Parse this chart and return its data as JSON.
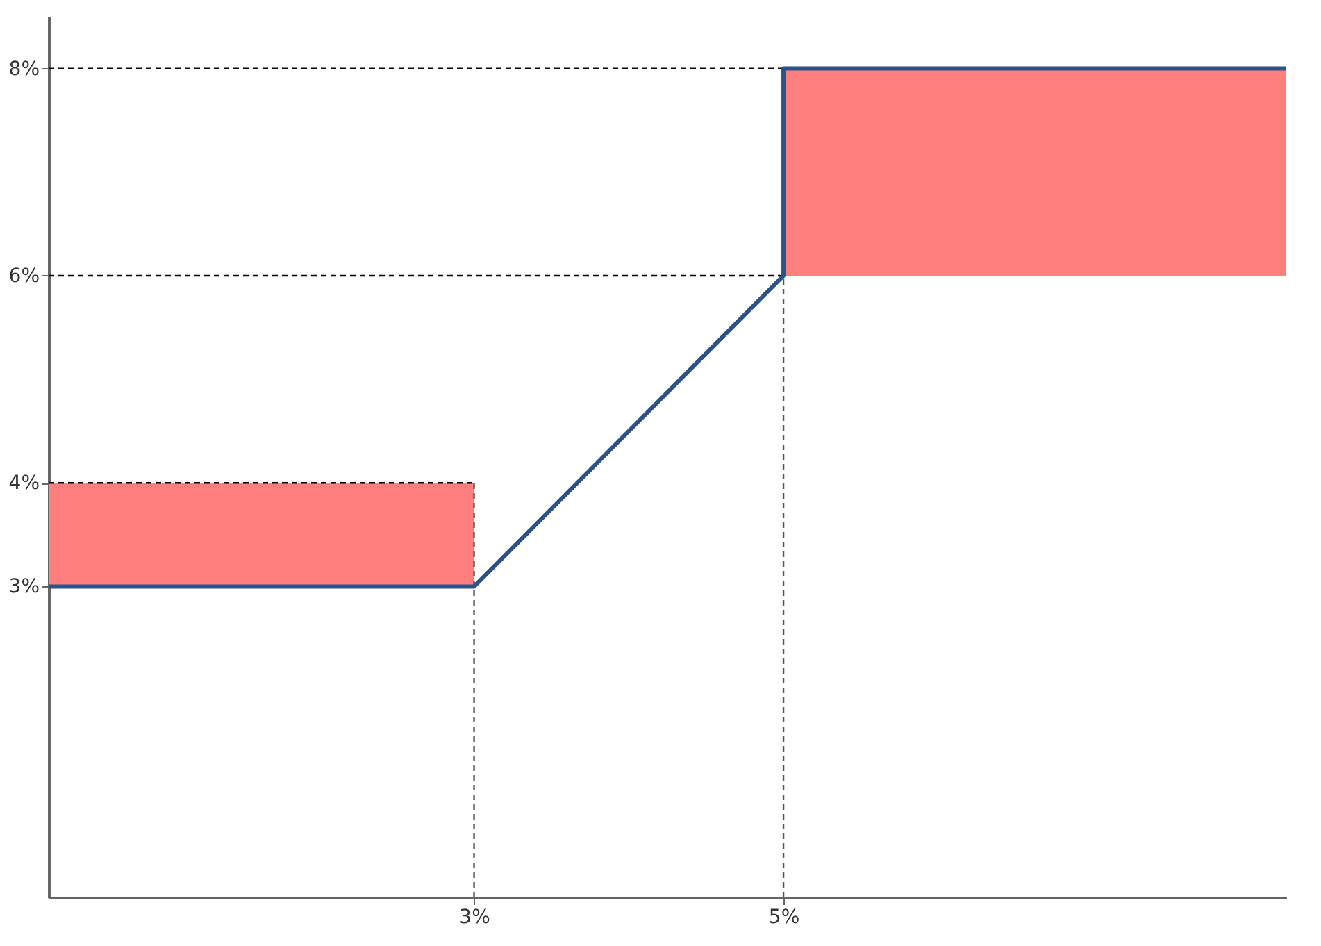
{
  "chart_data": {
    "type": "line",
    "xlim": [
      0.25,
      8.25
    ],
    "ylim": [
      0,
      8.5
    ],
    "xticks": [
      {
        "value": 3,
        "label": "3%"
      },
      {
        "value": 5,
        "label": "5%"
      }
    ],
    "yticks": [
      {
        "value": 3,
        "label": "3%"
      },
      {
        "value": 4,
        "label": "4%"
      },
      {
        "value": 6,
        "label": "6%"
      },
      {
        "value": 8,
        "label": "8%"
      }
    ],
    "grid": false,
    "marker": "none",
    "series": [
      {
        "line_style": "dashed",
        "x": [
          0.25,
          5
        ],
        "values": [
          8,
          8
        ],
        "color": "#000000"
      },
      {
        "line_style": "dashed",
        "x": [
          0.25,
          5
        ],
        "values": [
          6,
          6
        ],
        "color": "#000000"
      },
      {
        "line_style": "dashed",
        "x": [
          0.25,
          3
        ],
        "values": [
          4,
          4
        ],
        "color": "#000000"
      },
      {
        "line_style": "dashed",
        "x": [
          3,
          3
        ],
        "values": [
          0,
          4
        ],
        "color": "#555555"
      },
      {
        "line_style": "dashed",
        "x": [
          5,
          5
        ],
        "values": [
          0,
          6
        ],
        "color": "#555555"
      },
      {
        "line_style": "solid",
        "x": [
          0.25,
          3,
          5,
          5,
          8.25
        ],
        "values": [
          3,
          3,
          6,
          8,
          8
        ],
        "lower": [
          3,
          3,
          null,
          6,
          6
        ],
        "upper": [
          4,
          4,
          null,
          8,
          8
        ],
        "color": "#2f5286",
        "colors": [
          "#ff7f7f",
          "#ff7f7f",
          "#ff7f7f",
          "#ff7f7f",
          "#ff7f7f"
        ]
      }
    ]
  }
}
